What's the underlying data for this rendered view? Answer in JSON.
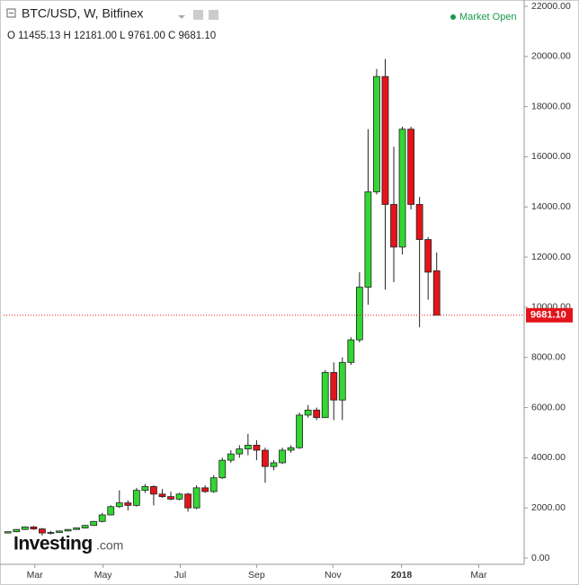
{
  "chart_data": {
    "type": "candlestick",
    "title": "BTC/USD, W, Bitfinex",
    "ohlc_text": "O 11455.13 H 12181.00 L 9761.00 C 9681.10",
    "status": "Market Open",
    "watermark": "Investing",
    "watermark_suffix": ".com",
    "up_color": "#33d633",
    "down_color": "#e3141a",
    "open": [
      1000,
      1050,
      1140,
      1240,
      1160,
      1000,
      1020,
      1080,
      1140,
      1200,
      1300,
      1460,
      1720,
      2050,
      2200,
      2100,
      2700,
      2850,
      2550,
      2450,
      2350,
      2550,
      2000,
      2800,
      2650,
      3200,
      3900,
      4150,
      4350,
      4500,
      4300,
      3650,
      3800,
      4300,
      4400,
      5700,
      5900,
      5600,
      7400,
      6300,
      7800,
      8700,
      10800,
      14600,
      19200,
      14100,
      12400,
      17100,
      14100,
      12700,
      11455.13
    ],
    "high": [
      1060,
      1150,
      1260,
      1280,
      1200,
      1080,
      1100,
      1150,
      1220,
      1320,
      1480,
      1800,
      2100,
      2700,
      2300,
      2800,
      2950,
      2900,
      2750,
      2650,
      2600,
      2600,
      2900,
      2900,
      3300,
      4000,
      4300,
      4500,
      4950,
      4700,
      4400,
      3900,
      4400,
      4500,
      5800,
      6100,
      6000,
      7500,
      7800,
      8000,
      8800,
      11400,
      17100,
      19500,
      19900,
      16400,
      17200,
      17200,
      14400,
      12800,
      12181
    ],
    "low": [
      980,
      1030,
      1120,
      1120,
      900,
      940,
      1000,
      1060,
      1120,
      1180,
      1280,
      1420,
      1700,
      2000,
      1900,
      2050,
      2600,
      2100,
      2400,
      2300,
      2300,
      1850,
      1950,
      2600,
      2600,
      3150,
      3800,
      4000,
      4100,
      3900,
      3000,
      3500,
      3750,
      4200,
      4350,
      5600,
      5500,
      5600,
      5500,
      5500,
      7700,
      8600,
      10100,
      14500,
      10700,
      11000,
      12100,
      13900,
      9200,
      10300,
      9761
    ],
    "close": [
      1050,
      1140,
      1240,
      1160,
      1000,
      1020,
      1080,
      1140,
      1200,
      1300,
      1460,
      1720,
      2050,
      2200,
      2100,
      2700,
      2850,
      2550,
      2450,
      2350,
      2550,
      2000,
      2800,
      2650,
      3200,
      3900,
      4150,
      4350,
      4500,
      4300,
      3650,
      3800,
      4300,
      4400,
      5700,
      5900,
      5600,
      7400,
      6300,
      7800,
      8700,
      10800,
      14600,
      19200,
      14100,
      12400,
      17100,
      14100,
      12700,
      11400,
      9681.1
    ],
    "last_price_label": "9681.10",
    "xlim": [
      -0.5,
      60.2
    ],
    "xticks": [
      {
        "value": 3.14,
        "label": "Mar"
      },
      {
        "value": 11.1,
        "label": "May"
      },
      {
        "value": 20.1,
        "label": "Jul"
      },
      {
        "value": 29.0,
        "label": "Sep"
      },
      {
        "value": 37.9,
        "label": "Nov"
      },
      {
        "value": 45.9,
        "label": "2018"
      },
      {
        "value": 54.9,
        "label": "Mar"
      }
    ],
    "ylim": [
      0,
      22000
    ],
    "yticks": [
      {
        "value": 0,
        "label": "0.00"
      },
      {
        "value": 2000,
        "label": "2000.00"
      },
      {
        "value": 4000,
        "label": "4000.00"
      },
      {
        "value": 6000,
        "label": "6000.00"
      },
      {
        "value": 8000,
        "label": "8000.00"
      },
      {
        "value": 10000,
        "label": "10000.00"
      },
      {
        "value": 12000,
        "label": "12000.00"
      },
      {
        "value": 14000,
        "label": "14000.00"
      },
      {
        "value": 16000,
        "label": "16000.00"
      },
      {
        "value": 18000,
        "label": "18000.00"
      },
      {
        "value": 20000,
        "label": "20000.00"
      },
      {
        "value": 22000,
        "label": "22000.00"
      }
    ]
  }
}
